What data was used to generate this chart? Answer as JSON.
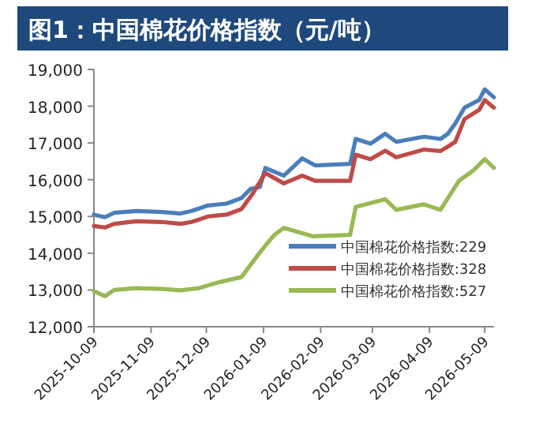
{
  "chart_data": {
    "type": "line",
    "title": "图1：中国棉花价格指数（元/吨）",
    "xlim": [
      "2025-10-09",
      "2026-05-14"
    ],
    "xticks": [
      "2025-10-09",
      "2025-11-09",
      "2025-12-09",
      "2026-01-09",
      "2026-02-09",
      "2026-03-09",
      "2026-04-09",
      "2026-05-09"
    ],
    "ylim": [
      12000,
      19000
    ],
    "yticks": [
      {
        "value": 12000,
        "label": "12,000"
      },
      {
        "value": 13000,
        "label": "13,000"
      },
      {
        "value": 14000,
        "label": "14,000"
      },
      {
        "value": 15000,
        "label": "15,000"
      },
      {
        "value": 16000,
        "label": "16,000"
      },
      {
        "value": 17000,
        "label": "17,000"
      },
      {
        "value": 18000,
        "label": "18,000"
      },
      {
        "value": 19000,
        "label": "19,000"
      }
    ],
    "grid": false,
    "legend": "bottom right",
    "marker": "none",
    "line_style": "solid",
    "series": [
      {
        "name": "中国棉花价格指数:229",
        "color": "#4a7ebb",
        "x": [
          "2025-10-09",
          "2025-10-15",
          "2025-10-20",
          "2025-11-01",
          "2025-11-15",
          "2025-11-25",
          "2025-12-01",
          "2025-12-10",
          "2025-12-20",
          "2025-12-28",
          "2026-01-02",
          "2026-01-07",
          "2026-01-10",
          "2026-01-20",
          "2026-01-30",
          "2026-02-06",
          "2026-02-25",
          "2026-02-28",
          "2026-03-08",
          "2026-03-16",
          "2026-03-22",
          "2026-04-06",
          "2026-04-15",
          "2026-04-19",
          "2026-04-23",
          "2026-04-28",
          "2026-05-06",
          "2026-05-09",
          "2026-05-14"
        ],
        "values": [
          15050,
          14980,
          15100,
          15150,
          15120,
          15080,
          15150,
          15300,
          15350,
          15500,
          15750,
          15800,
          16320,
          16110,
          16580,
          16390,
          16430,
          17110,
          16980,
          17250,
          17030,
          17170,
          17110,
          17250,
          17530,
          17960,
          18170,
          18460,
          18240
        ]
      },
      {
        "name": "中国棉花价格指数:328",
        "color": "#be4b48",
        "x": [
          "2025-10-09",
          "2025-10-15",
          "2025-10-20",
          "2025-11-01",
          "2025-11-15",
          "2025-11-25",
          "2025-12-01",
          "2025-12-10",
          "2025-12-20",
          "2025-12-28",
          "2026-01-03",
          "2026-01-10",
          "2026-01-20",
          "2026-01-30",
          "2026-02-06",
          "2026-02-25",
          "2026-02-28",
          "2026-03-08",
          "2026-03-16",
          "2026-03-22",
          "2026-04-06",
          "2026-04-15",
          "2026-04-19",
          "2026-04-23",
          "2026-04-28",
          "2026-05-06",
          "2026-05-09",
          "2026-05-14"
        ],
        "values": [
          14740,
          14700,
          14800,
          14870,
          14850,
          14800,
          14850,
          15000,
          15050,
          15200,
          15610,
          16180,
          15900,
          16110,
          15970,
          15970,
          16680,
          16560,
          16790,
          16610,
          16820,
          16780,
          16900,
          17030,
          17650,
          17900,
          18170,
          17960
        ]
      },
      {
        "name": "中国棉花价格指数:527",
        "color": "#98b954",
        "x": [
          "2025-10-09",
          "2025-10-15",
          "2025-10-20",
          "2025-11-01",
          "2025-11-15",
          "2025-11-25",
          "2025-12-05",
          "2025-12-15",
          "2025-12-28",
          "2026-01-06",
          "2026-01-12",
          "2026-01-15",
          "2026-01-20",
          "2026-02-05",
          "2026-02-25",
          "2026-02-28",
          "2026-03-16",
          "2026-03-22",
          "2026-04-06",
          "2026-04-15",
          "2026-04-25",
          "2026-05-03",
          "2026-05-09",
          "2026-05-14"
        ],
        "values": [
          12970,
          12830,
          13000,
          13050,
          13030,
          12990,
          13050,
          13200,
          13350,
          13950,
          14330,
          14500,
          14690,
          14460,
          14500,
          15260,
          15470,
          15180,
          15330,
          15180,
          15970,
          16260,
          16560,
          16320
        ]
      }
    ]
  }
}
